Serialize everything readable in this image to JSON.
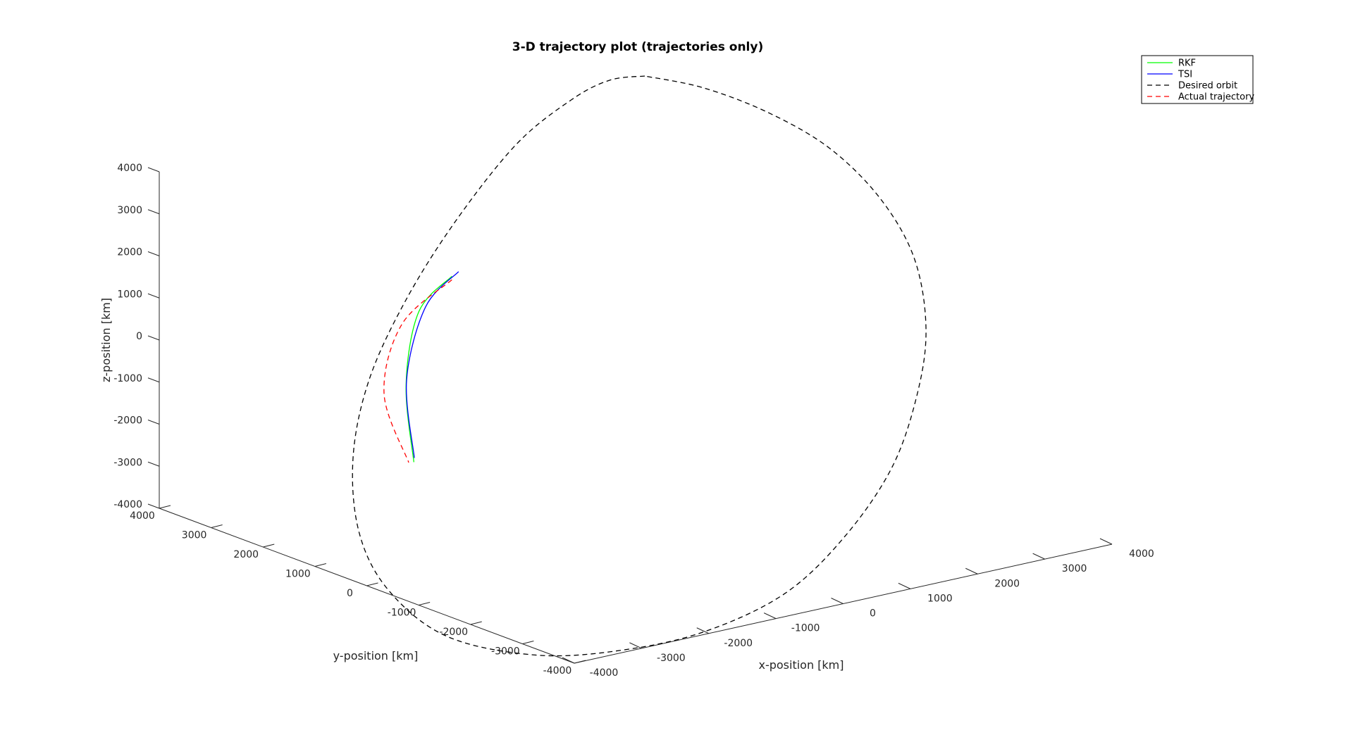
{
  "chart_data": {
    "type": "line",
    "title": "3-D trajectory plot (trajectories only)",
    "xlabel": "x-position [km]",
    "ylabel": "y-position [km]",
    "zlabel": "z-position [km]",
    "xlim": [
      -4000,
      4000
    ],
    "ylim": [
      -4000,
      4000
    ],
    "zlim": [
      -4000,
      4000
    ],
    "x_ticks": [
      -4000,
      -3000,
      -2000,
      -1000,
      0,
      1000,
      2000,
      3000,
      4000
    ],
    "y_ticks": [
      -4000,
      -3000,
      -2000,
      -1000,
      0,
      1000,
      2000,
      3000,
      4000
    ],
    "z_ticks": [
      -4000,
      -3000,
      -2000,
      -1000,
      0,
      1000,
      2000,
      3000,
      4000
    ],
    "x_tick_labels": [
      "-4000",
      "-3000",
      "-2000",
      "-1000",
      "0",
      "1000",
      "2000",
      "3000",
      "4000"
    ],
    "y_tick_labels": [
      "-4000",
      "-3000",
      "-2000",
      "-1000",
      "0",
      "1000",
      "2000",
      "3000",
      "4000"
    ],
    "z_tick_labels": [
      "-4000",
      "-3000",
      "-2000",
      "-1000",
      "0",
      "1000",
      "2000",
      "3000",
      "4000"
    ],
    "grid": false,
    "legend_position": "top-right",
    "series": [
      {
        "name": "RKF",
        "color": "#00ff00",
        "style": "solid",
        "points": [
          [
            -1950,
            -200,
            1350
          ],
          [
            -2150,
            200,
            950
          ],
          [
            -2150,
            600,
            0
          ],
          [
            -1950,
            1000,
            -1050
          ]
        ]
      },
      {
        "name": "TSI",
        "color": "#0000ff",
        "style": "solid",
        "points": [
          [
            -1900,
            -250,
            1400
          ],
          [
            -2100,
            150,
            1000
          ],
          [
            -2160,
            550,
            50
          ],
          [
            -1960,
            950,
            -1000
          ]
        ]
      },
      {
        "name": "Desired orbit",
        "color": "#000000",
        "style": "dashed",
        "points": [
          [
            0,
            0,
            4000
          ],
          [
            -500,
            -500,
            3900
          ],
          [
            -1000,
            -900,
            3600
          ],
          [
            -1600,
            -1100,
            3000
          ],
          [
            -2150,
            -950,
            2000
          ],
          [
            -2500,
            -500,
            1000
          ],
          [
            -2700,
            0,
            0
          ],
          [
            -2700,
            500,
            -1000
          ],
          [
            -2500,
            950,
            -2000
          ],
          [
            -2100,
            1300,
            -2800
          ],
          [
            -1500,
            1400,
            -3500
          ],
          [
            -700,
            1200,
            -3900
          ],
          [
            0,
            800,
            -4000
          ],
          [
            700,
            400,
            -3900
          ],
          [
            1400,
            100,
            -3500
          ],
          [
            1900,
            -200,
            -2800
          ],
          [
            2300,
            -400,
            -1900
          ],
          [
            2500,
            -550,
            -900
          ],
          [
            2550,
            -650,
            0
          ],
          [
            2450,
            -600,
            1000
          ],
          [
            2150,
            -500,
            1900
          ],
          [
            1700,
            -350,
            2700
          ],
          [
            1150,
            -200,
            3300
          ],
          [
            550,
            -80,
            3750
          ],
          [
            0,
            0,
            4000
          ]
        ]
      },
      {
        "name": "Actual trajectory",
        "color": "#ff0000",
        "style": "dashed",
        "points": [
          [
            -1950,
            -200,
            1300
          ],
          [
            -2300,
            250,
            800
          ],
          [
            -2350,
            650,
            -100
          ],
          [
            -2000,
            1000,
            -1050
          ]
        ]
      }
    ]
  }
}
